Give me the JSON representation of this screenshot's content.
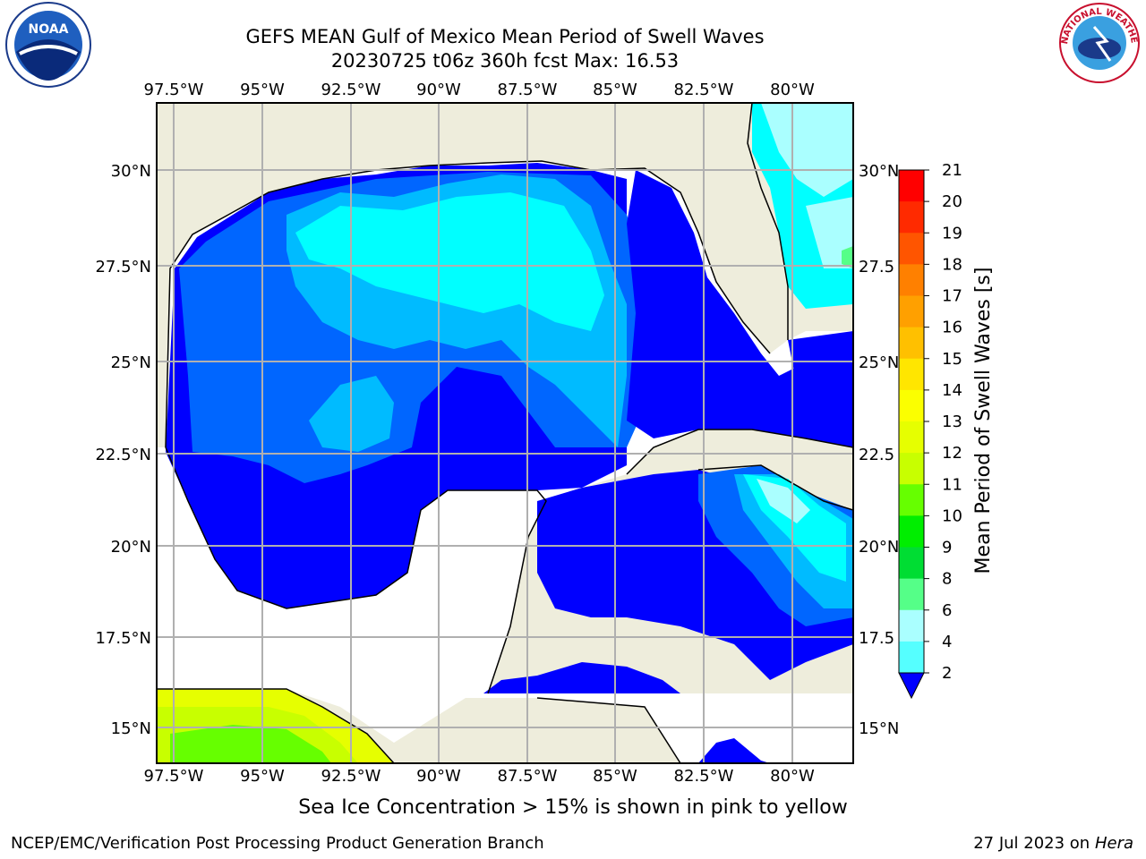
{
  "title_line1": "GEFS MEAN Gulf of Mexico Mean Period of Swell Waves",
  "title_line2": "20230725 t06z 360h fcst   Max: 16.53",
  "lon_labels": [
    "97.5°W",
    "95°W",
    "92.5°W",
    "90°W",
    "87.5°W",
    "85°W",
    "82.5°W",
    "80°W"
  ],
  "lat_labels_left": [
    "30°N",
    "27.5°N",
    "25°N",
    "22.5°N",
    "20°N",
    "17.5°N",
    "15°N"
  ],
  "lat_labels_right": [
    "30°N",
    "27.5",
    "25°N",
    "22.5",
    "20°N",
    "17.5",
    "15°N"
  ],
  "colorbar": {
    "label": "Mean Period of Swell Waves [s]",
    "ticks": [
      "21",
      "20",
      "19",
      "18",
      "17",
      "16",
      "15",
      "14",
      "13",
      "12",
      "11",
      "10",
      "9",
      "8",
      "6",
      "4",
      "2"
    ],
    "colors": [
      "#ff0000",
      "#ff2a00",
      "#ff5500",
      "#ff8000",
      "#ffa000",
      "#ffc000",
      "#ffe600",
      "#fbff00",
      "#e6ff00",
      "#c8ff00",
      "#66ff00",
      "#00ee00",
      "#00dd33",
      "#55ff88",
      "#aaffff",
      "#55ffff",
      "#00ffff",
      "#00bbff",
      "#0066ff",
      "#0000ff"
    ]
  },
  "note": "Sea Ice Concentration > 15% is shown in pink to yellow",
  "footer_left": "NCEP/EMC/Verification Post Processing Product Generation Branch",
  "footer_date": "27 Jul 2023 on ",
  "footer_machine": "Hera",
  "logos": {
    "left_text": "NOAA",
    "right_text": "NATIONAL WEATHER SERVICE"
  }
}
